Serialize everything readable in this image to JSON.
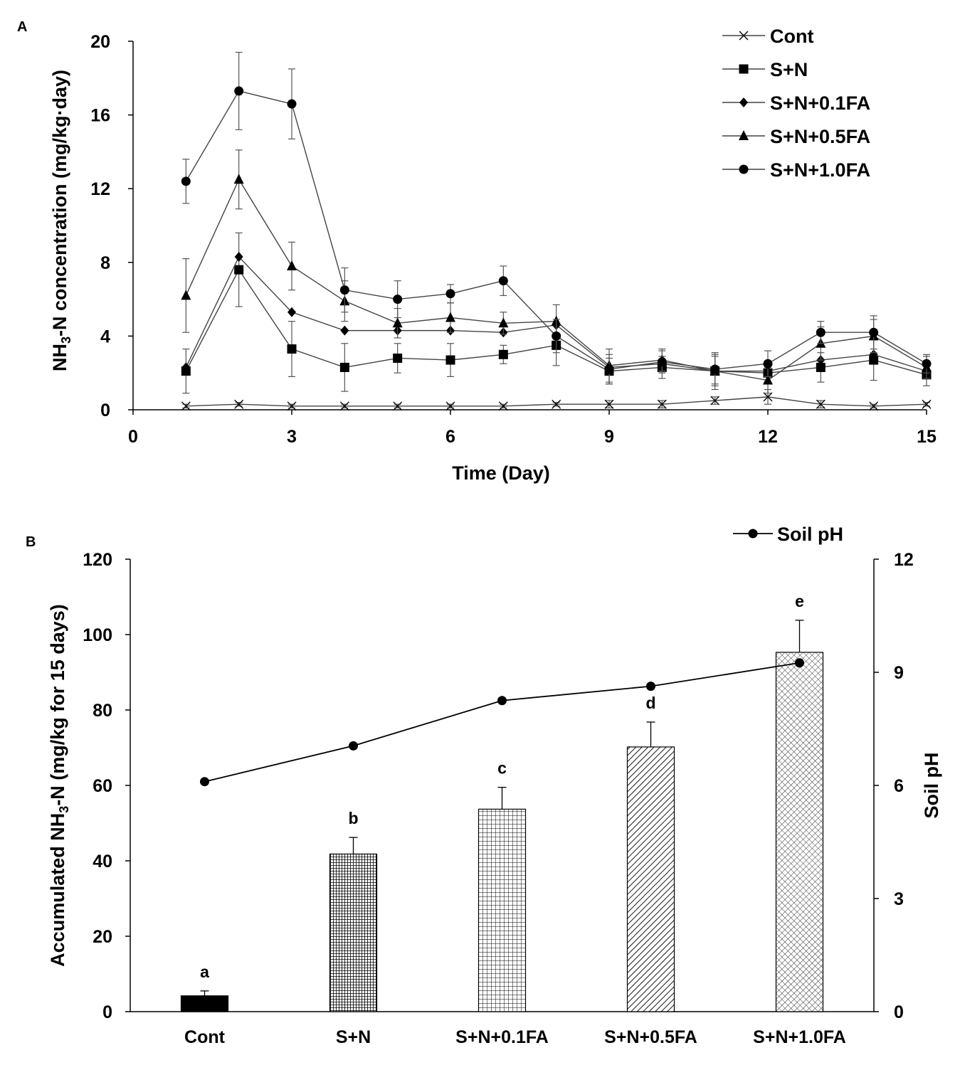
{
  "chart_data": [
    {
      "panel_label": "A",
      "type": "line",
      "xlabel": "Time (Day)",
      "ylabel": {
        "prefix": "NH",
        "sub": "3",
        "suffix": "-N concentration (mg/kg·day)"
      },
      "xlim": [
        0,
        15
      ],
      "ylim": [
        0,
        20
      ],
      "x_ticks": [
        "0",
        "3",
        "6",
        "9",
        "12",
        "15"
      ],
      "y_ticks": [
        "0",
        "4",
        "8",
        "12",
        "16",
        "20"
      ],
      "x_tick_values": [
        0,
        3,
        6,
        9,
        12,
        15
      ],
      "y_tick_values": [
        0,
        4,
        8,
        12,
        16,
        20
      ],
      "legend_position": "top-right",
      "x": [
        1,
        2,
        3,
        4,
        5,
        6,
        7,
        8,
        9,
        10,
        11,
        12,
        13,
        14,
        15
      ],
      "series": [
        {
          "name": "Cont",
          "marker": "x",
          "values": [
            0.2,
            0.3,
            0.2,
            0.2,
            0.2,
            0.2,
            0.2,
            0.3,
            0.3,
            0.3,
            0.5,
            0.7,
            0.3,
            0.2,
            0.3
          ],
          "errors": [
            0.1,
            0.1,
            0.1,
            0.1,
            0.1,
            0.1,
            0.1,
            0.1,
            0.2,
            0.2,
            0.2,
            0.4,
            0.2,
            0.1,
            0.1
          ]
        },
        {
          "name": "S+N",
          "marker": "square",
          "values": [
            2.1,
            7.6,
            3.3,
            2.3,
            2.8,
            2.7,
            3.0,
            3.5,
            2.1,
            2.3,
            2.1,
            2.0,
            2.3,
            2.7,
            1.9
          ],
          "errors": [
            1.2,
            2.0,
            1.5,
            1.3,
            0.8,
            0.9,
            0.5,
            1.1,
            0.7,
            0.6,
            0.8,
            0.5,
            0.8,
            1.1,
            0.6
          ]
        },
        {
          "name": "S+N+0.1FA",
          "marker": "diamond",
          "values": [
            2.3,
            8.3,
            5.3,
            4.3,
            4.3,
            4.3,
            4.2,
            4.6,
            2.3,
            2.5,
            2.1,
            2.1,
            2.7,
            3.0,
            2.1
          ]
        },
        {
          "name": "S+N+0.5FA",
          "marker": "triangle",
          "values": [
            6.2,
            12.5,
            7.8,
            5.9,
            4.7,
            5.0,
            4.7,
            4.8,
            2.4,
            2.7,
            2.1,
            1.6,
            3.6,
            4.0,
            2.3
          ],
          "errors": [
            2.0,
            1.6,
            1.3,
            1.1,
            0.8,
            0.8,
            0.6,
            0.9,
            0.9,
            0.6,
            1.0,
            0.7,
            0.9,
            0.9,
            0.6
          ]
        },
        {
          "name": "S+N+1.0FA",
          "marker": "circle",
          "values": [
            12.4,
            17.3,
            16.6,
            6.5,
            6.0,
            6.3,
            7.0,
            4.0,
            2.2,
            2.6,
            2.2,
            2.5,
            4.2,
            4.2,
            2.5
          ],
          "errors": [
            1.2,
            2.1,
            1.9,
            1.2,
            1.0,
            0.5,
            0.8,
            0.9,
            0.8,
            0.6,
            0.8,
            0.7,
            0.6,
            0.9,
            0.5
          ]
        }
      ]
    },
    {
      "panel_label": "B",
      "type": "bar",
      "categories": [
        "Cont",
        "S+N",
        "S+N+0.1FA",
        "S+N+0.5FA",
        "S+N+1.0FA"
      ],
      "ylabel": {
        "prefix": "Accumulated NH",
        "sub": "3",
        "suffix": "-N (mg/kg for 15 days)"
      },
      "y2label": "Soil pH",
      "ylim": [
        0,
        120
      ],
      "y2lim": [
        0,
        12
      ],
      "y_ticks": [
        "0",
        "20",
        "40",
        "60",
        "80",
        "100",
        "120"
      ],
      "y_tick_values": [
        0,
        20,
        40,
        60,
        80,
        100,
        120
      ],
      "y2_ticks": [
        "0",
        "3",
        "6",
        "9",
        "12"
      ],
      "y2_tick_values": [
        0,
        3,
        6,
        9,
        12
      ],
      "legend_position": "top-right",
      "series": [
        {
          "name": "Accumulated NH3-N",
          "type": "bar",
          "values": [
            4.2,
            41.8,
            53.7,
            70.2,
            95.3
          ],
          "errors": [
            1.3,
            4.4,
            5.8,
            6.6,
            8.5
          ],
          "letters": [
            "a",
            "b",
            "c",
            "d",
            "e"
          ],
          "patterns": [
            "solid",
            "dense-grid",
            "grid",
            "diagonal",
            "crosshatch"
          ]
        },
        {
          "name": "Soil pH",
          "type": "line",
          "axis": "right",
          "values": [
            6.1,
            7.05,
            8.25,
            8.63,
            9.25
          ]
        }
      ]
    }
  ]
}
